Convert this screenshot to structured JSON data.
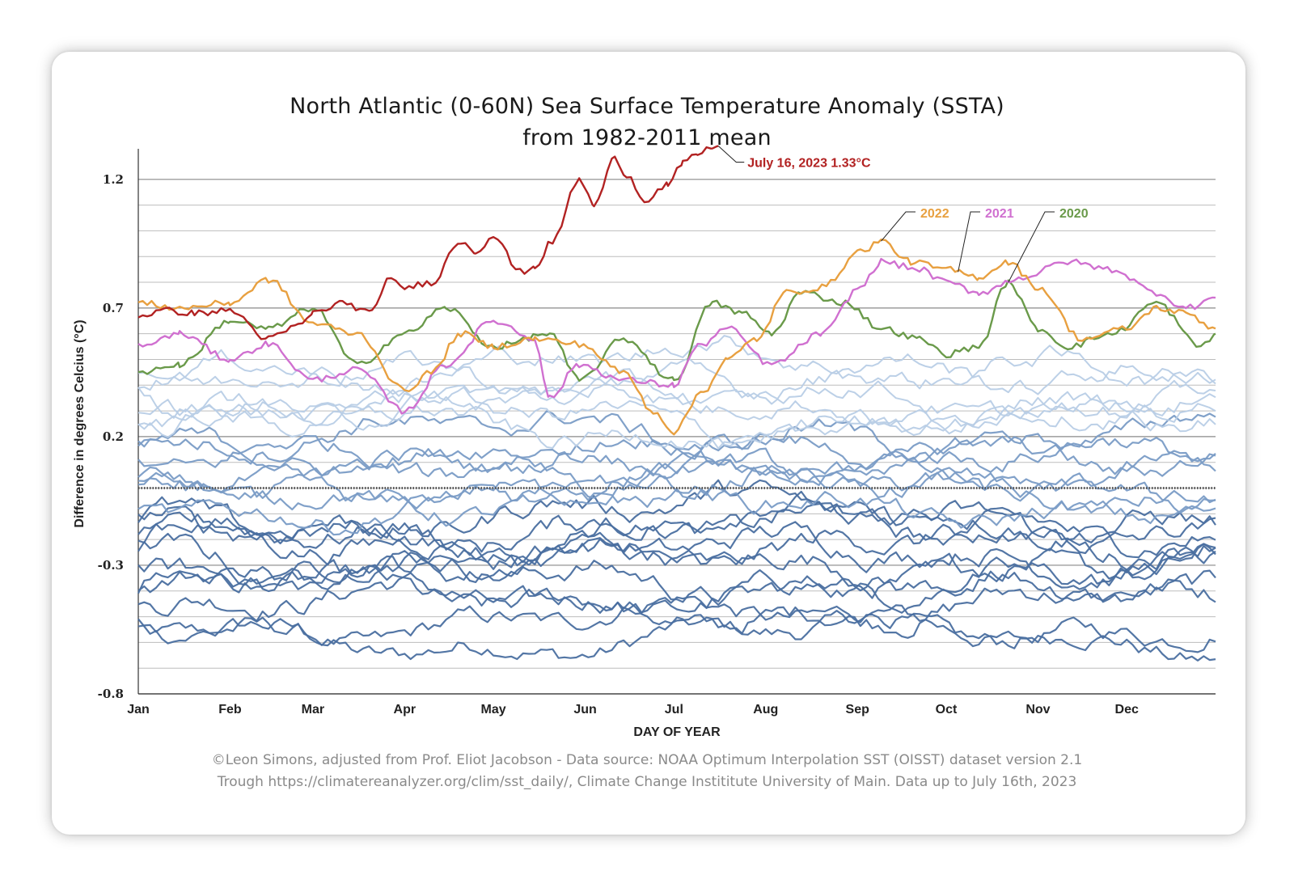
{
  "chart_data": {
    "type": "line",
    "title": "North Atlantic (0-60N) Sea Surface Temperature Anomaly (SSTA)",
    "subtitle": "from 1982-2011 mean",
    "xlabel": "DAY OF YEAR",
    "ylabel": "Difference in degrees Celcius (°C)",
    "ylim": [
      -0.8,
      1.3
    ],
    "yticks": [
      "1.2",
      "0.7",
      "0.2",
      "-0.3",
      "-0.8"
    ],
    "ytick_values": [
      1.2,
      0.7,
      0.2,
      -0.3,
      -0.8
    ],
    "months": [
      "Jan",
      "Feb",
      "Mar",
      "Apr",
      "May",
      "Jun",
      "Jul",
      "Aug",
      "Sep",
      "Oct",
      "Nov",
      "Dec"
    ],
    "grid": true,
    "legend": "inline-labels",
    "colors": {
      "y2023": "#b22222",
      "y2022": "#e8a040",
      "y2021": "#d070d0",
      "y2020": "#6a9a4a",
      "dark_years": "#4a6fa0",
      "mid_years": "#7a9cc6",
      "light_years": "#b8cde6",
      "grid": "#9a9a9a"
    },
    "series": [
      {
        "name": "2023",
        "x": [
          1,
          10,
          20,
          32,
          45,
          55,
          60,
          70,
          80,
          85,
          91,
          100,
          110,
          115,
          121,
          130,
          135,
          141,
          150,
          155,
          162,
          166,
          172,
          180,
          185,
          190,
          195,
          197
        ],
        "y": [
          0.67,
          0.69,
          0.68,
          0.69,
          0.58,
          0.63,
          0.68,
          0.72,
          0.68,
          0.81,
          0.78,
          0.8,
          0.96,
          0.92,
          0.98,
          0.84,
          0.86,
          0.96,
          1.2,
          1.1,
          1.28,
          1.22,
          1.12,
          1.18,
          1.26,
          1.3,
          1.32,
          1.33
        ]
      },
      {
        "name": "2022",
        "x": [
          1,
          15,
          32,
          45,
          60,
          75,
          91,
          100,
          110,
          121,
          135,
          150,
          165,
          175,
          182,
          192,
          200,
          210,
          220,
          232,
          245,
          252,
          262,
          274,
          285,
          295,
          305,
          320,
          335,
          345,
          355,
          365
        ],
        "y": [
          0.72,
          0.7,
          0.72,
          0.81,
          0.64,
          0.6,
          0.38,
          0.45,
          0.6,
          0.55,
          0.58,
          0.56,
          0.45,
          0.3,
          0.22,
          0.38,
          0.5,
          0.58,
          0.76,
          0.78,
          0.92,
          0.96,
          0.88,
          0.85,
          0.82,
          0.88,
          0.78,
          0.58,
          0.62,
          0.7,
          0.68,
          0.62
        ]
      },
      {
        "name": "2021",
        "x": [
          1,
          15,
          32,
          45,
          60,
          75,
          91,
          105,
          121,
          135,
          140,
          150,
          165,
          182,
          190,
          200,
          215,
          232,
          245,
          252,
          265,
          274,
          285,
          300,
          315,
          330,
          345,
          355,
          365
        ],
        "y": [
          0.55,
          0.6,
          0.5,
          0.56,
          0.42,
          0.46,
          0.3,
          0.48,
          0.65,
          0.58,
          0.35,
          0.48,
          0.42,
          0.4,
          0.55,
          0.62,
          0.48,
          0.6,
          0.78,
          0.88,
          0.85,
          0.8,
          0.76,
          0.82,
          0.88,
          0.85,
          0.76,
          0.7,
          0.74
        ]
      },
      {
        "name": "2020",
        "x": [
          1,
          15,
          32,
          45,
          60,
          75,
          91,
          105,
          121,
          140,
          150,
          165,
          182,
          195,
          205,
          215,
          225,
          240,
          252,
          265,
          274,
          285,
          295,
          305,
          315,
          330,
          345,
          360,
          365
        ],
        "y": [
          0.45,
          0.48,
          0.65,
          0.62,
          0.7,
          0.48,
          0.6,
          0.7,
          0.55,
          0.6,
          0.42,
          0.58,
          0.42,
          0.72,
          0.68,
          0.6,
          0.76,
          0.72,
          0.62,
          0.58,
          0.52,
          0.55,
          0.8,
          0.62,
          0.55,
          0.6,
          0.72,
          0.55,
          0.6
        ]
      }
    ],
    "annotations": [
      {
        "text": "July 16, 2023 1.33°C",
        "x": 197,
        "y": 1.33
      },
      {
        "text": "2022",
        "x": 252,
        "y": 0.96
      },
      {
        "text": "2021",
        "x": 278,
        "y": 0.84
      },
      {
        "text": "2020",
        "x": 295,
        "y": 0.8
      }
    ],
    "background_years": [
      {
        "style": "dark",
        "baseline": -0.58,
        "amplitude": 0.08
      },
      {
        "style": "dark",
        "baseline": -0.52,
        "amplitude": 0.08
      },
      {
        "style": "dark",
        "baseline": -0.46,
        "amplitude": 0.09
      },
      {
        "style": "dark",
        "baseline": -0.4,
        "amplitude": 0.09
      },
      {
        "style": "dark",
        "baseline": -0.35,
        "amplitude": 0.09
      },
      {
        "style": "dark",
        "baseline": -0.3,
        "amplitude": 0.09
      },
      {
        "style": "dark",
        "baseline": -0.26,
        "amplitude": 0.09
      },
      {
        "style": "dark",
        "baseline": -0.22,
        "amplitude": 0.09
      },
      {
        "style": "dark",
        "baseline": -0.18,
        "amplitude": 0.09
      },
      {
        "style": "dark",
        "baseline": -0.14,
        "amplitude": 0.09
      },
      {
        "style": "dark",
        "baseline": -0.1,
        "amplitude": 0.09
      },
      {
        "style": "mid",
        "baseline": -0.06,
        "amplitude": 0.08
      },
      {
        "style": "mid",
        "baseline": -0.02,
        "amplitude": 0.08
      },
      {
        "style": "mid",
        "baseline": 0.02,
        "amplitude": 0.08
      },
      {
        "style": "mid",
        "baseline": 0.06,
        "amplitude": 0.08
      },
      {
        "style": "mid",
        "baseline": 0.1,
        "amplitude": 0.08
      },
      {
        "style": "mid",
        "baseline": 0.15,
        "amplitude": 0.08
      },
      {
        "style": "mid",
        "baseline": 0.2,
        "amplitude": 0.08
      },
      {
        "style": "light",
        "baseline": 0.24,
        "amplitude": 0.08
      },
      {
        "style": "light",
        "baseline": 0.28,
        "amplitude": 0.08
      },
      {
        "style": "light",
        "baseline": 0.32,
        "amplitude": 0.08
      },
      {
        "style": "light",
        "baseline": 0.36,
        "amplitude": 0.08
      },
      {
        "style": "light",
        "baseline": 0.42,
        "amplitude": 0.08
      },
      {
        "style": "light",
        "baseline": 0.48,
        "amplitude": 0.08
      }
    ]
  },
  "footer": {
    "credit_line1": "©Leon Simons, adjusted from Prof. Eliot Jacobson - Data source: NOAA Optimum Interpolation SST (OISST) dataset version 2.1",
    "credit_line2": "Trough https://climatereanalyzer.org/clim/sst_daily/, Climate Change Instititute University of Main. Data up to July 16th, 2023"
  }
}
